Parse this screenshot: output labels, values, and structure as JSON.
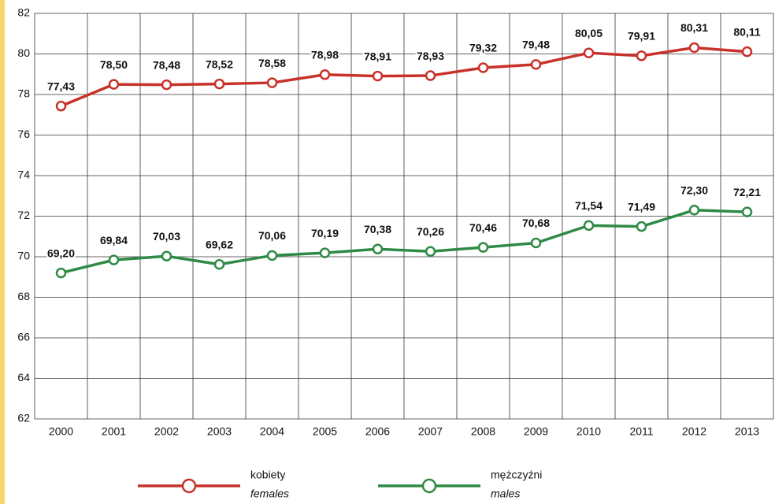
{
  "chart_data": {
    "type": "line",
    "categories": [
      "2000",
      "2001",
      "2002",
      "2003",
      "2004",
      "2005",
      "2006",
      "2007",
      "2008",
      "2009",
      "2010",
      "2011",
      "2012",
      "2013"
    ],
    "series": [
      {
        "name": "kobiety",
        "name_en": "females",
        "color": "#c8322a",
        "values": [
          77.43,
          78.5,
          78.48,
          78.52,
          78.58,
          78.98,
          78.91,
          78.93,
          79.32,
          79.48,
          80.05,
          79.91,
          80.31,
          80.11
        ],
        "value_labels": [
          "77,43",
          "78,50",
          "78,48",
          "78,52",
          "78,58",
          "78,98",
          "78,91",
          "78,93",
          "79,32",
          "79,48",
          "80,05",
          "79,91",
          "80,31",
          "80,11"
        ]
      },
      {
        "name": "mężczyźni",
        "name_en": "males",
        "color": "#2f8a45",
        "values": [
          69.2,
          69.84,
          70.03,
          69.62,
          70.06,
          70.19,
          70.38,
          70.26,
          70.46,
          70.68,
          71.54,
          71.49,
          72.3,
          72.21
        ],
        "value_labels": [
          "69,20",
          "69,84",
          "70,03",
          "69,62",
          "70,06",
          "70,19",
          "70,38",
          "70,26",
          "70,46",
          "70,68",
          "71,54",
          "71,49",
          "72,30",
          "72,21"
        ]
      }
    ],
    "ylim": [
      62,
      82
    ],
    "yticks": [
      62,
      64,
      66,
      68,
      70,
      72,
      74,
      76,
      78,
      80,
      82
    ],
    "grid": true
  }
}
